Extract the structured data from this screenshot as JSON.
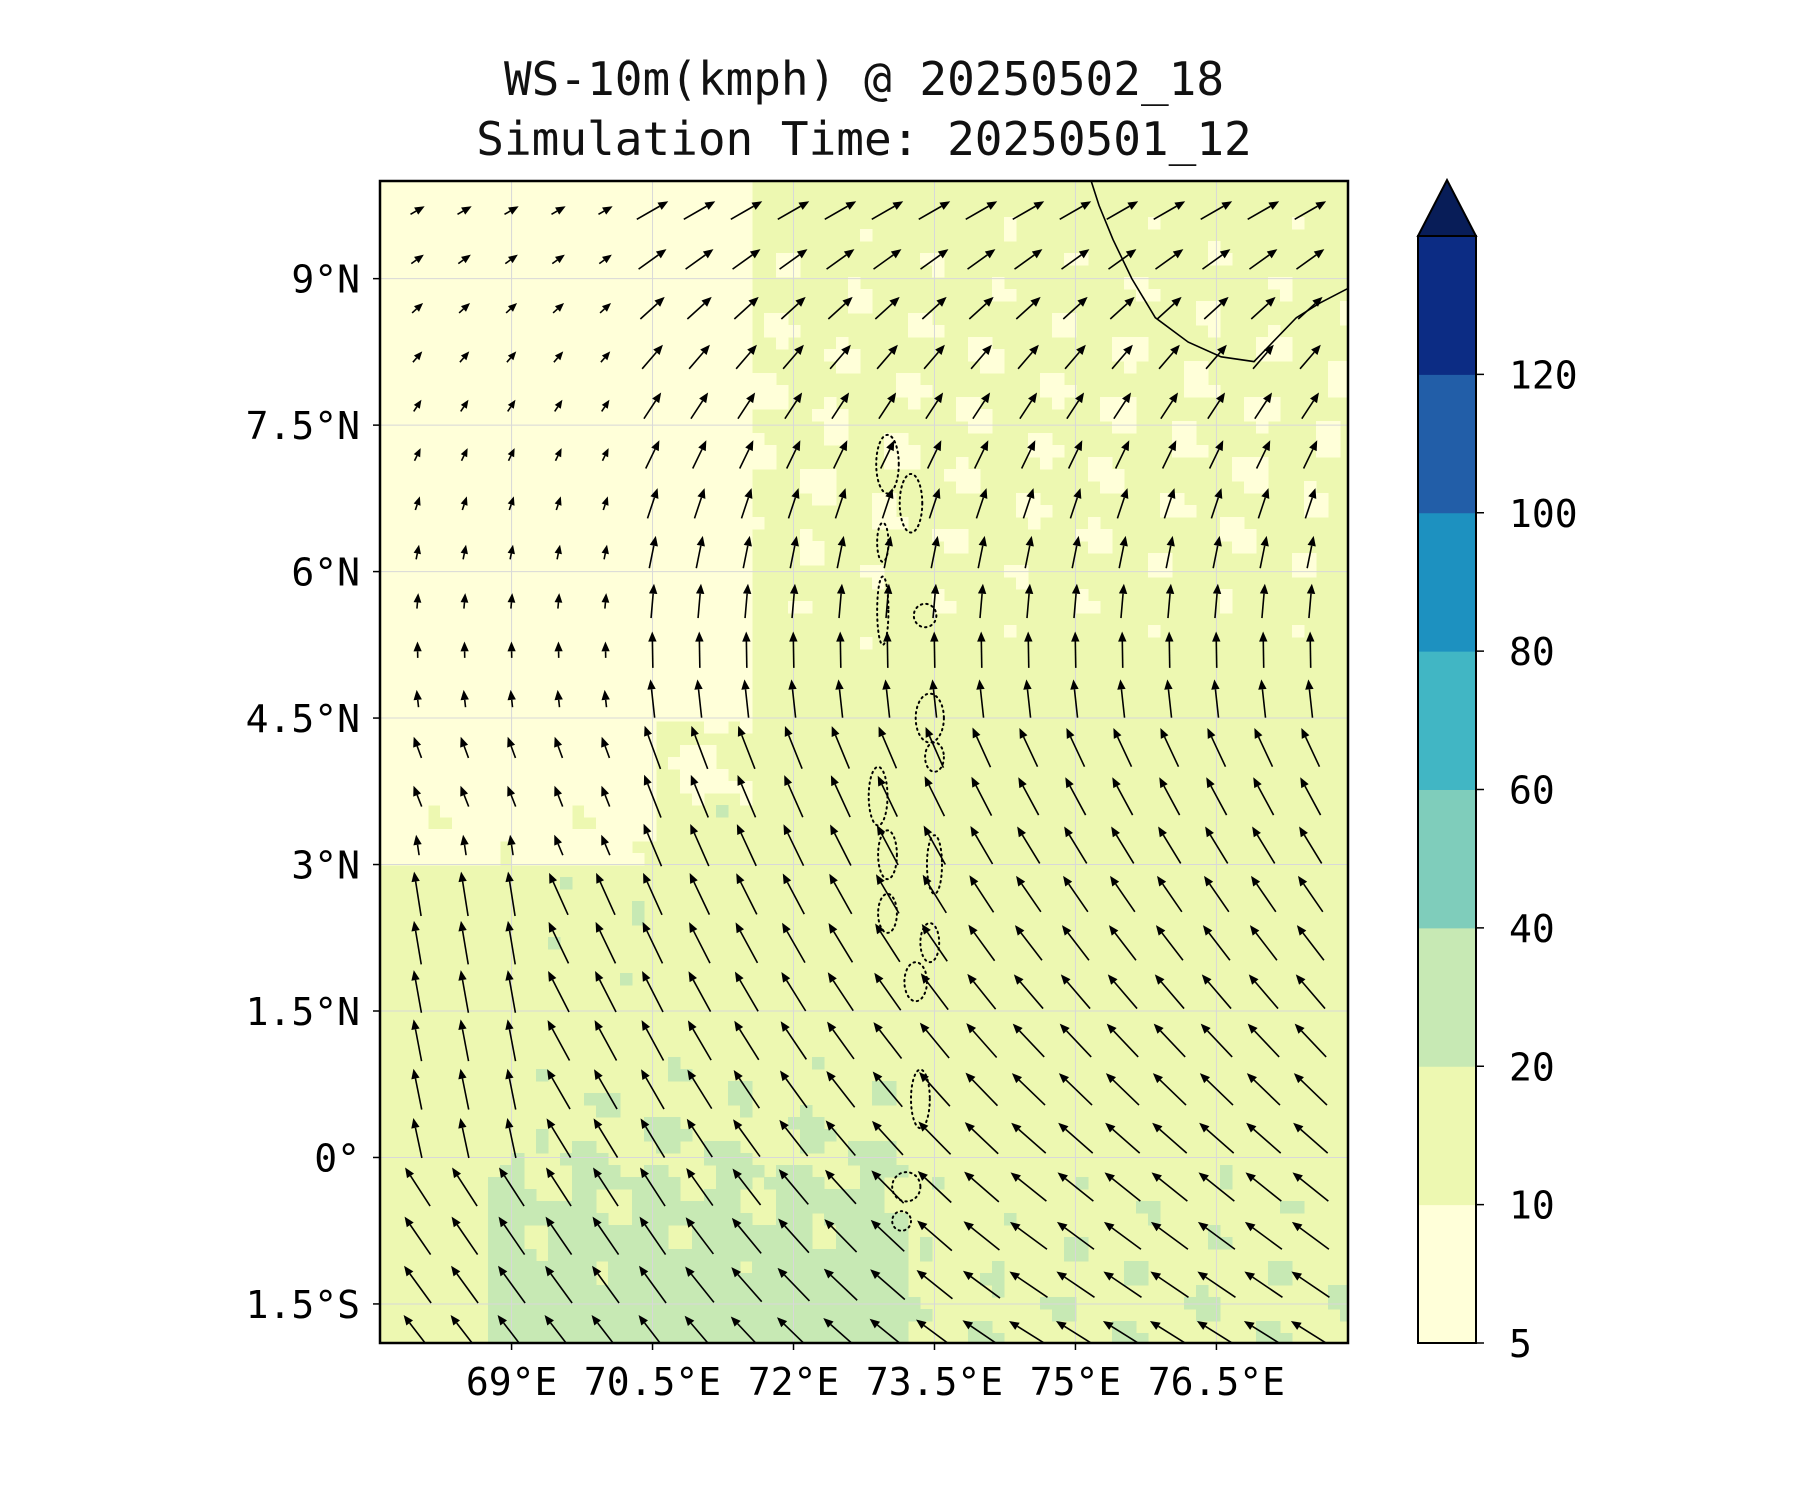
{
  "title": "WS-10m(kmph) @ 20250502_18",
  "subtitle": "Simulation Time: 20250501_12",
  "map": {
    "lon_range": [
      67.6,
      77.9
    ],
    "lat_range": [
      -1.9,
      10.0
    ],
    "lat_ticks": [
      {
        "value": 9.0,
        "label": "9°N"
      },
      {
        "value": 7.5,
        "label": "7.5°N"
      },
      {
        "value": 6.0,
        "label": "6°N"
      },
      {
        "value": 4.5,
        "label": "4.5°N"
      },
      {
        "value": 3.0,
        "label": "3°N"
      },
      {
        "value": 1.5,
        "label": "1.5°N"
      },
      {
        "value": 0.0,
        "label": "0°"
      },
      {
        "value": -1.5,
        "label": "1.5°S"
      }
    ],
    "lon_ticks": [
      {
        "value": 69.0,
        "label": "69°E"
      },
      {
        "value": 70.5,
        "label": "70.5°E"
      },
      {
        "value": 72.0,
        "label": "72°E"
      },
      {
        "value": 73.5,
        "label": "73.5°E"
      },
      {
        "value": 75.0,
        "label": "75°E"
      },
      {
        "value": 76.5,
        "label": "76.5°E"
      }
    ],
    "grid": true,
    "field": "10 m wind speed (filled contours) with wind vectors",
    "features": [
      "India/Sri Lanka coastline (top-right)",
      "Maldives atolls (dotted outlines)"
    ]
  },
  "colorbar": {
    "levels": [
      5,
      10,
      20,
      40,
      60,
      80,
      100,
      120
    ],
    "labels": [
      "5",
      "10",
      "20",
      "40",
      "60",
      "80",
      "100",
      "120"
    ],
    "colors": [
      "#ffffd9",
      "#edf8b1",
      "#c7e9b4",
      "#7fcdbb",
      "#41b6c4",
      "#1d91c0",
      "#225ea8",
      "#0c2c84"
    ],
    "extend": "max",
    "extend_color": "#081d58"
  }
}
